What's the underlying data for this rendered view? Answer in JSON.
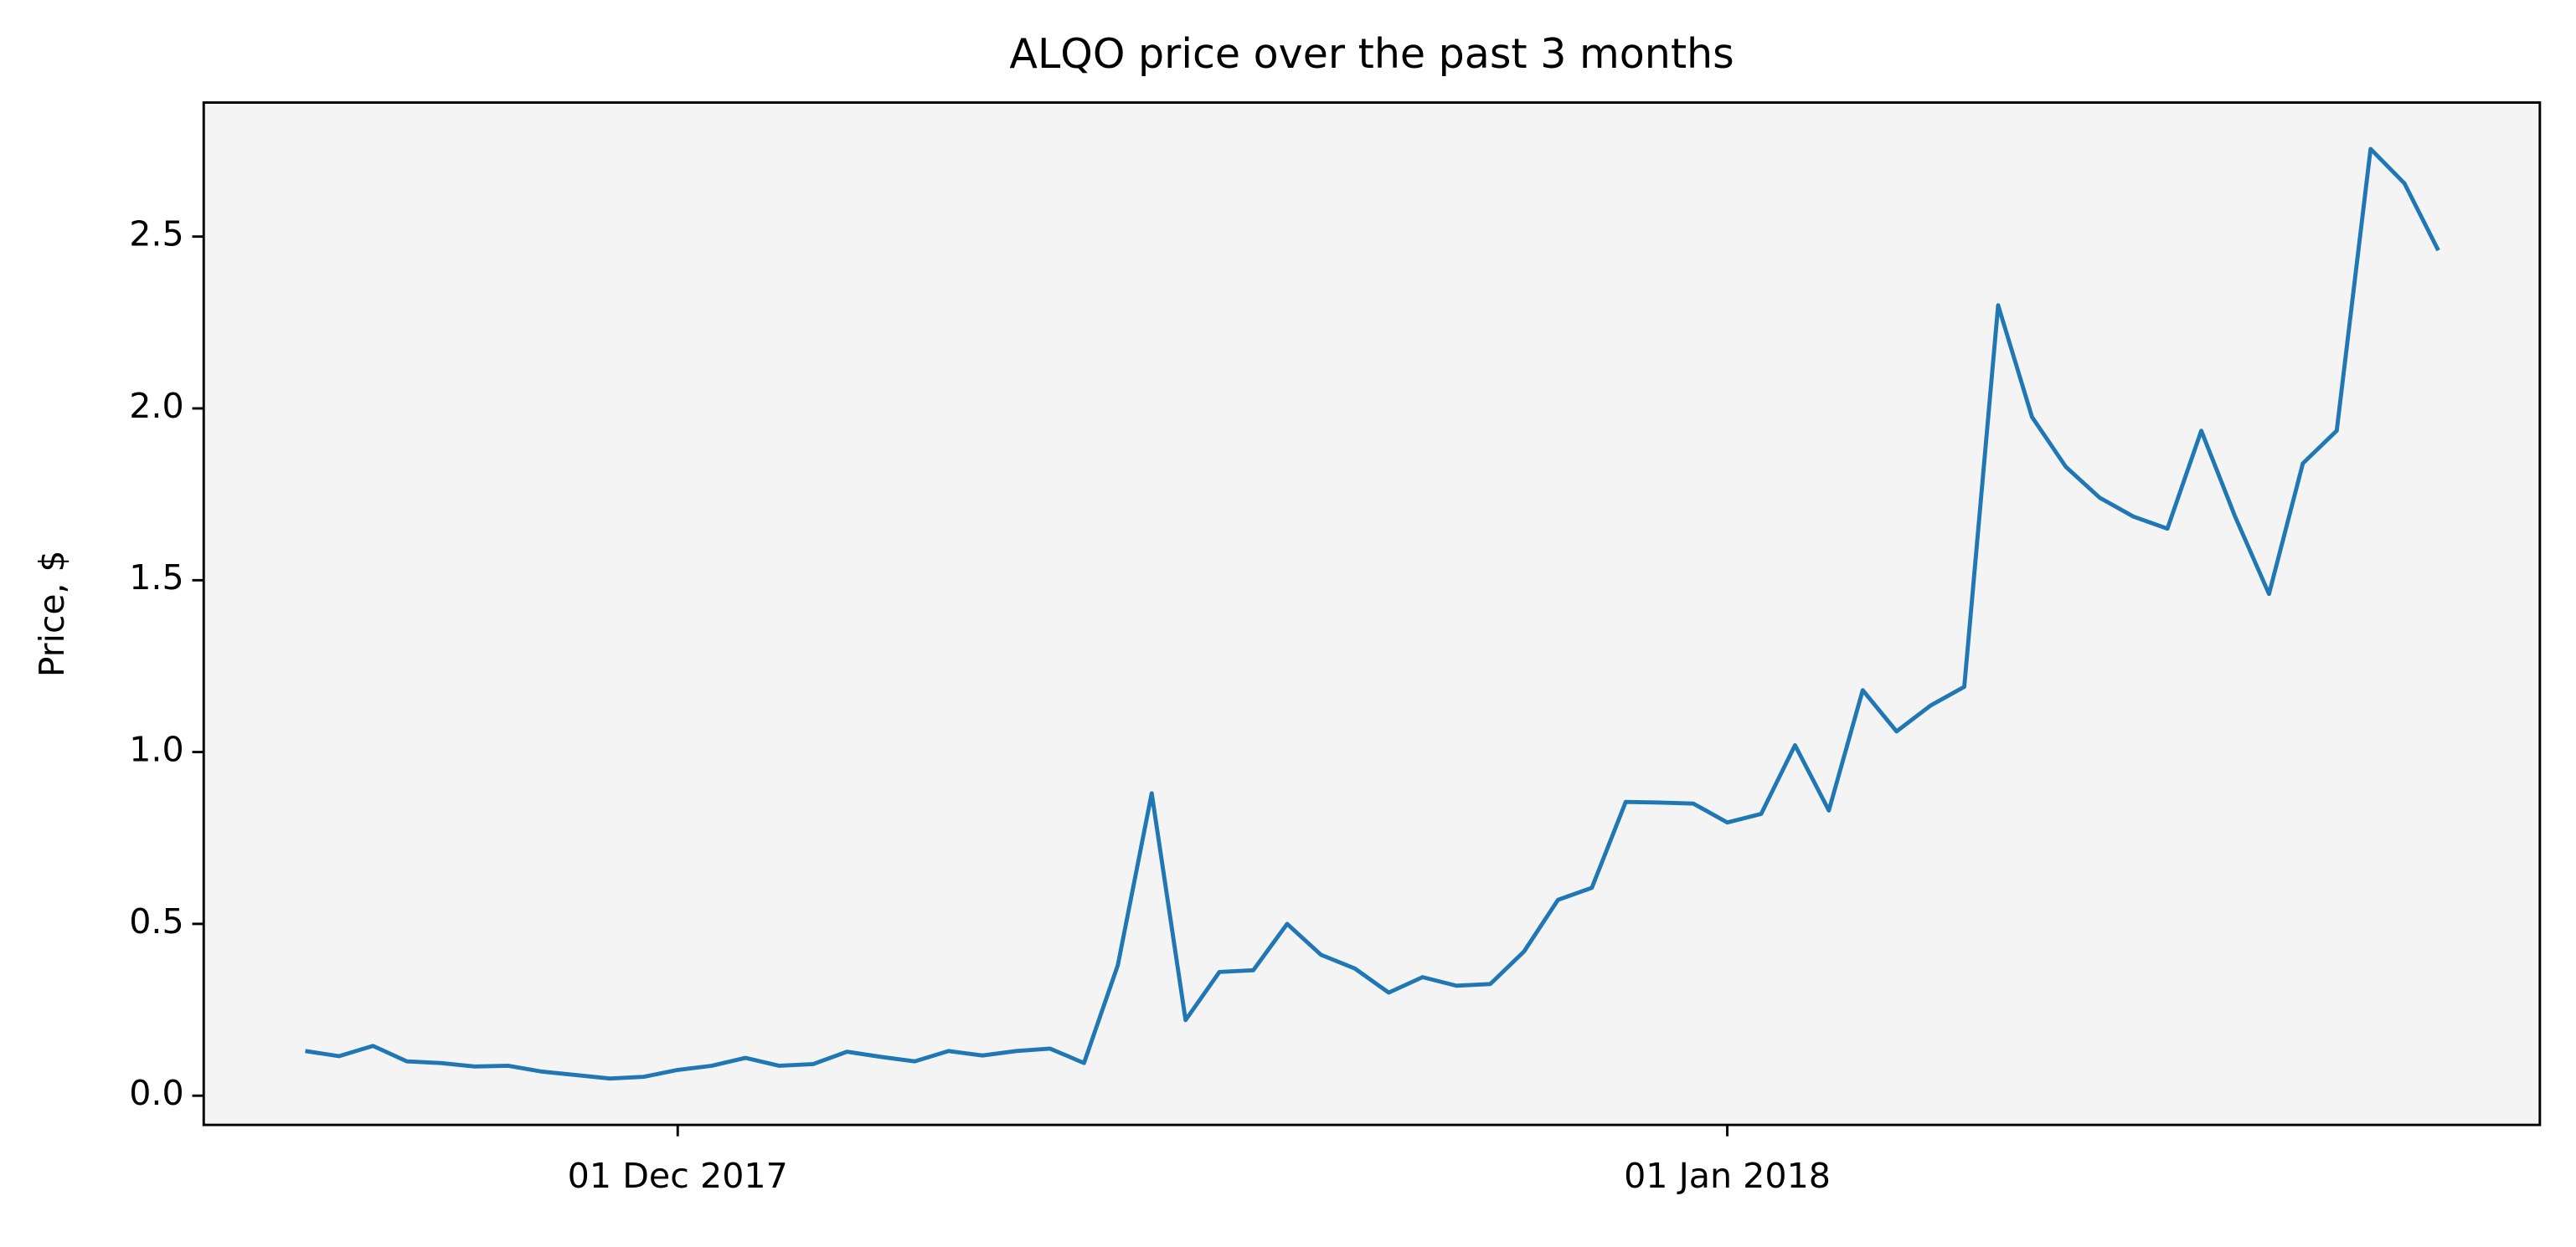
{
  "chart_data": {
    "type": "line",
    "title": "ALQO price over the past 3 months",
    "ylabel": "Price, $",
    "x": [
      "2017-11-20",
      "2017-11-21",
      "2017-11-22",
      "2017-11-23",
      "2017-11-24",
      "2017-11-25",
      "2017-11-26",
      "2017-11-27",
      "2017-11-28",
      "2017-11-29",
      "2017-11-30",
      "2017-12-01",
      "2017-12-02",
      "2017-12-03",
      "2017-12-04",
      "2017-12-05",
      "2017-12-06",
      "2017-12-07",
      "2017-12-08",
      "2017-12-09",
      "2017-12-10",
      "2017-12-11",
      "2017-12-12",
      "2017-12-13",
      "2017-12-14",
      "2017-12-15",
      "2017-12-16",
      "2017-12-17",
      "2017-12-18",
      "2017-12-19",
      "2017-12-20",
      "2017-12-21",
      "2017-12-22",
      "2017-12-23",
      "2017-12-24",
      "2017-12-25",
      "2017-12-26",
      "2017-12-27",
      "2017-12-28",
      "2017-12-29",
      "2017-12-30",
      "2017-12-31",
      "2018-01-01",
      "2018-01-02",
      "2018-01-03",
      "2018-01-04",
      "2018-01-05",
      "2018-01-06",
      "2018-01-07",
      "2018-01-08",
      "2018-01-09",
      "2018-01-10",
      "2018-01-11",
      "2018-01-12",
      "2018-01-13",
      "2018-01-14",
      "2018-01-15",
      "2018-01-16",
      "2018-01-17",
      "2018-01-18",
      "2018-01-19",
      "2018-01-20",
      "2018-01-21",
      "2018-01-22"
    ],
    "values": [
      0.13,
      0.115,
      0.145,
      0.1,
      0.095,
      0.085,
      0.087,
      0.07,
      0.06,
      0.05,
      0.055,
      0.075,
      0.087,
      0.11,
      0.087,
      0.092,
      0.128,
      0.113,
      0.1,
      0.13,
      0.117,
      0.13,
      0.137,
      0.095,
      0.38,
      0.88,
      0.22,
      0.36,
      0.365,
      0.5,
      0.41,
      0.37,
      0.3,
      0.345,
      0.32,
      0.325,
      0.42,
      0.57,
      0.605,
      0.855,
      0.853,
      0.85,
      0.795,
      0.82,
      1.02,
      0.83,
      1.18,
      1.06,
      1.135,
      1.19,
      2.3,
      1.975,
      1.83,
      1.74,
      1.685,
      1.65,
      1.935,
      1.685,
      1.46,
      1.84,
      1.935,
      2.755,
      2.655,
      2.46
    ],
    "color": "#1f77b4",
    "xlim": [
      "2017-11-17",
      "2018-01-25"
    ],
    "xticks": [
      {
        "value": "2017-12-01",
        "label": "01 Dec 2017"
      },
      {
        "value": "2018-01-01",
        "label": "01 Jan 2018"
      }
    ],
    "ylim": [
      -0.085,
      2.89
    ],
    "yticks": [
      {
        "value": 0,
        "label": "0.0"
      },
      0.5,
      {
        "value": 1,
        "label": "1.0"
      },
      1.5,
      {
        "value": 2,
        "label": "2.0"
      },
      2.5
    ],
    "background": "#f4f4f4"
  }
}
